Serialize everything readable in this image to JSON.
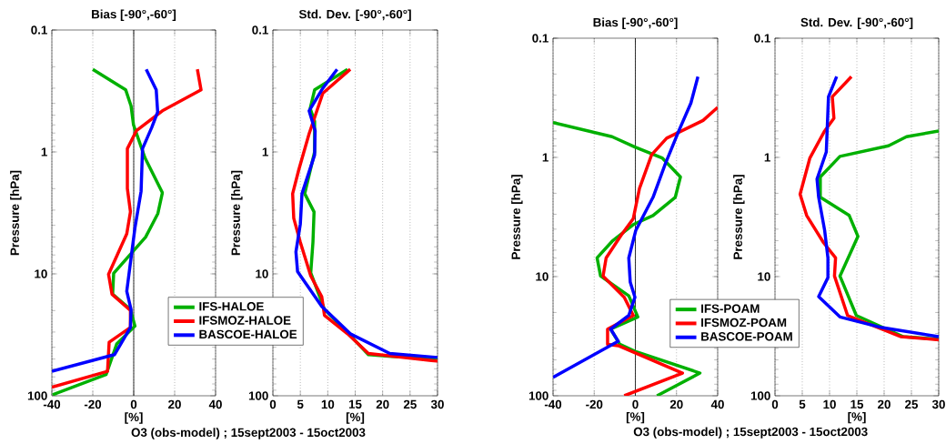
{
  "chart_data": [
    {
      "type": "line",
      "title": "Bias [-90°,-60°]",
      "xlabel": "[%]",
      "ylabel": "Pressure [hPa]",
      "xlim": [
        -40,
        40
      ],
      "xticks": [
        -40,
        -20,
        0,
        20,
        40
      ],
      "ylim": [
        100,
        0.1
      ],
      "yticks": [
        0.1,
        1,
        10,
        100
      ],
      "log": "y",
      "grid": "x",
      "legend": "bottom right",
      "marker": "none",
      "line_style": "solid",
      "ref_lines": [
        {
          "axis": "x",
          "value": 0,
          "color": "#000000"
        }
      ],
      "annotations": [
        "O3 (obs-model) ; 15sept2003 - 15oct2003"
      ],
      "series": [
        {
          "name": "IFS-HALOE",
          "color": "#00b000",
          "x": [
            -20,
            -3.9,
            -1.3,
            -0.1,
            5.5,
            14,
            11.8,
            5.8,
            -9.8,
            -10.3,
            -1.6,
            0.6,
            -8.3,
            -13.5,
            -39.6
          ],
          "values": [
            0.21,
            0.31,
            0.42,
            0.6,
            1.12,
            2.16,
            3.2,
            5,
            9.9,
            14.7,
            19.6,
            26.8,
            37.6,
            67,
            98
          ]
        },
        {
          "name": "IFSMOZ-HALOE",
          "color": "#ff0000",
          "x": [
            31.1,
            32.9,
            14,
            1.3,
            -3.1,
            -3.1,
            -1.6,
            -3.4,
            -12.3,
            -10.6,
            -1.6,
            -1.6,
            -12,
            -12.8,
            -40
          ],
          "values": [
            0.21,
            0.31,
            0.46,
            0.67,
            0.94,
            2,
            3.1,
            4.7,
            10.1,
            14.7,
            20,
            27.5,
            36.4,
            63,
            85
          ]
        },
        {
          "name": "BASCOE-HALOE",
          "color": "#0000ff",
          "x": [
            6.1,
            11,
            11.7,
            8.8,
            4.3,
            3.6,
            0.6,
            -1.3,
            -3.4,
            -1.3,
            -1.6,
            -9.4,
            -40
          ],
          "values": [
            0.21,
            0.31,
            0.47,
            0.63,
            0.94,
            2.1,
            4.2,
            7.4,
            13.9,
            19.6,
            27.5,
            46,
            63
          ]
        }
      ]
    },
    {
      "type": "line",
      "title": "Std. Dev. [-90°,-60°]",
      "xlabel": "[%]",
      "ylabel": "Pressure [hPa]",
      "xlim": [
        0,
        30
      ],
      "xticks": [
        0,
        5,
        10,
        15,
        20,
        25,
        30
      ],
      "ylim": [
        100,
        0.1
      ],
      "yticks": [
        0.1,
        1,
        10,
        100
      ],
      "log": "y",
      "grid": "x",
      "marker": "none",
      "line_style": "solid",
      "series": [
        {
          "color": "#00b000",
          "x": [
            13.6,
            7.6,
            6.8,
            7.6,
            7.6,
            5.8,
            7.5,
            7.3,
            6.9,
            9.4,
            13.8,
            17.4,
            21.6,
            30
          ],
          "values": [
            0.21,
            0.31,
            0.44,
            0.56,
            1,
            2.2,
            3.1,
            5.5,
            9.8,
            19.6,
            31,
            46,
            47.6,
            49
          ]
        },
        {
          "color": "#ff0000",
          "x": [
            14.1,
            9.1,
            6.6,
            4.7,
            3.6,
            3.8,
            5,
            6.9,
            8.9,
            9.4,
            13.6,
            17.4,
            30
          ],
          "values": [
            0.21,
            0.33,
            0.71,
            1.41,
            2.2,
            3.5,
            5.5,
            10.4,
            15.4,
            21.9,
            31,
            45,
            52
          ]
        },
        {
          "color": "#0000ff",
          "x": [
            11.7,
            9.1,
            6.6,
            7.7,
            7.6,
            5.3,
            5,
            4.2,
            4.5,
            8.9,
            14.1,
            21.3,
            30
          ],
          "values": [
            0.21,
            0.3,
            0.46,
            0.67,
            1.06,
            2.2,
            3.9,
            6.6,
            9.6,
            18.5,
            31,
            45,
            48.5
          ]
        }
      ]
    },
    {
      "type": "line",
      "title": "Bias [-90°,-60°]",
      "xlabel": "[%]",
      "ylabel": "Pressure [hPa]",
      "xlim": [
        -40,
        40
      ],
      "xticks": [
        -40,
        -20,
        0,
        20,
        40
      ],
      "ylim": [
        100,
        0.1
      ],
      "yticks": [
        0.1,
        1,
        10,
        100
      ],
      "log": "y",
      "grid": "x",
      "legend": "bottom right",
      "marker": "none",
      "line_style": "solid",
      "ref_lines": [
        {
          "axis": "x",
          "value": 0,
          "color": "#000000"
        }
      ],
      "annotations": [
        "O3 (obs-model) ; 15sept2003 - 15oct2003"
      ],
      "series": [
        {
          "name": "IFS-POAM",
          "color": "#00b000",
          "x": [
            -40,
            -11.3,
            -0.2,
            13,
            21.9,
            19.4,
            8.6,
            -1,
            -11.3,
            -18.6,
            -16.9,
            -3.2,
            1.2,
            -12,
            -7.6,
            0.5,
            31.4,
            10.5
          ],
          "values": [
            0.51,
            0.67,
            0.82,
            1.01,
            1.46,
            2.16,
            3.07,
            3.66,
            5.06,
            6.97,
            9.9,
            14.5,
            21.8,
            27.6,
            37,
            42.8,
            64.5,
            100
          ]
        },
        {
          "name": "IFSMOZ-POAM",
          "color": "#ff0000",
          "x": [
            40,
            32.9,
            15.2,
            7.9,
            2,
            -1,
            -6.9,
            -14.2,
            -15.7,
            -5.4,
            -1,
            -13.5,
            -13.5,
            -8.3,
            22.9,
            -5.4
          ],
          "values": [
            0.38,
            0.49,
            0.69,
            0.95,
            1.82,
            3.26,
            4.5,
            6.97,
            9.9,
            14.9,
            21.2,
            27.6,
            37,
            38,
            64.5,
            100
          ]
        },
        {
          "name": "BASCOE-POAM",
          "color": "#0000ff",
          "x": [
            30.4,
            27,
            21.1,
            14.5,
            8.6,
            0.2,
            -3.2,
            -2.5,
            -0.2,
            -3.2,
            -12,
            -8.3,
            -40
          ],
          "values": [
            0.21,
            0.35,
            0.6,
            1.14,
            2.16,
            4.1,
            6.97,
            11.1,
            14.9,
            21.2,
            27.6,
            34.9,
            70
          ]
        }
      ]
    },
    {
      "type": "line",
      "title": "Std. Dev. [-90°,-60°]",
      "xlabel": "[%]",
      "ylabel": "Pressure [hPa]",
      "xlim": [
        0,
        30
      ],
      "xticks": [
        0,
        5,
        10,
        15,
        20,
        25,
        30
      ],
      "ylim": [
        100,
        0.1
      ],
      "yticks": [
        0.1,
        1,
        10,
        100
      ],
      "log": "y",
      "grid": "x",
      "marker": "none",
      "line_style": "solid",
      "series": [
        {
          "color": "#00b000",
          "x": [
            30,
            24.1,
            20.8,
            11.9,
            8.3,
            8.3,
            13.6,
            15.2,
            11.9,
            14.9,
            23.5,
            30
          ],
          "values": [
            0.6,
            0.67,
            0.8,
            0.98,
            1.46,
            2.16,
            3.07,
            4.6,
            9.9,
            21.2,
            31.9,
            33.5
          ]
        },
        {
          "color": "#ff0000",
          "x": [
            14,
            10.5,
            10.8,
            9.1,
            6.4,
            4.6,
            5.8,
            8.9,
            11.1,
            10.9,
            13.3,
            23,
            30
          ],
          "values": [
            0.21,
            0.31,
            0.47,
            0.6,
            1.01,
            2.04,
            3.07,
            5.2,
            6.97,
            9.9,
            21.2,
            31.9,
            33.9
          ]
        },
        {
          "color": "#0000ff",
          "x": [
            11.3,
            9.8,
            9.4,
            7.7,
            8,
            9.1,
            9.7,
            9.7,
            8,
            11.9,
            19.6,
            30
          ],
          "values": [
            0.21,
            0.31,
            0.9,
            1.52,
            2.16,
            4.1,
            6.97,
            10.2,
            14.7,
            21.8,
            26.8,
            31.9
          ]
        }
      ]
    }
  ]
}
